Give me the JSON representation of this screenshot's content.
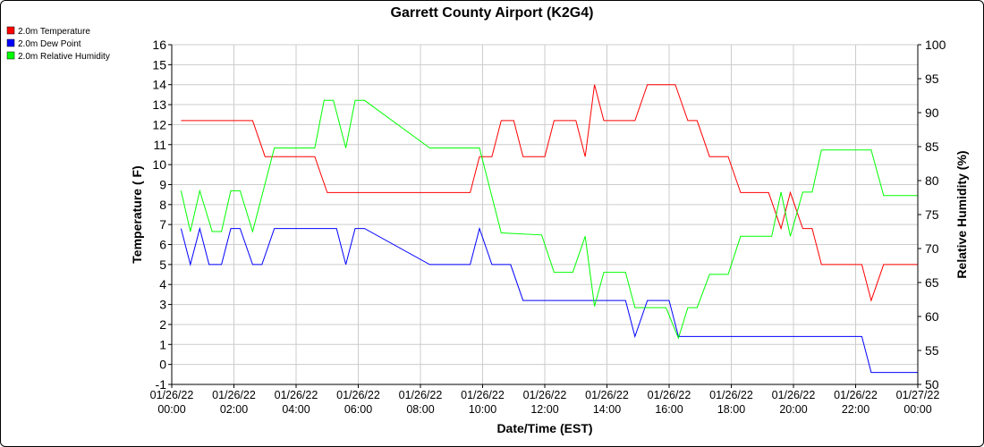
{
  "chart_data": {
    "type": "line",
    "title": "Garrett County Airport (K2G4)",
    "xlabel": "Date/Time (EST)",
    "ylabel_left": "Temperature ( F)",
    "ylabel_right": "Relative Humidity (%)",
    "x_range_hours": [
      0,
      24
    ],
    "ylim_left": [
      -1,
      16
    ],
    "ylim_right": [
      50,
      100
    ],
    "grid": true,
    "legend_position": "top-left",
    "x_ticks": [
      {
        "h": 0,
        "date": "01/26/22",
        "time": "00:00"
      },
      {
        "h": 2,
        "date": "01/26/22",
        "time": "02:00"
      },
      {
        "h": 4,
        "date": "01/26/22",
        "time": "04:00"
      },
      {
        "h": 6,
        "date": "01/26/22",
        "time": "06:00"
      },
      {
        "h": 8,
        "date": "01/26/22",
        "time": "08:00"
      },
      {
        "h": 10,
        "date": "01/26/22",
        "time": "10:00"
      },
      {
        "h": 12,
        "date": "01/26/22",
        "time": "12:00"
      },
      {
        "h": 14,
        "date": "01/26/22",
        "time": "14:00"
      },
      {
        "h": 16,
        "date": "01/26/22",
        "time": "16:00"
      },
      {
        "h": 18,
        "date": "01/26/22",
        "time": "18:00"
      },
      {
        "h": 20,
        "date": "01/26/22",
        "time": "20:00"
      },
      {
        "h": 22,
        "date": "01/26/22",
        "time": "22:00"
      },
      {
        "h": 24,
        "date": "01/27/22",
        "time": "00:00"
      }
    ],
    "y_ticks_left": [
      "16",
      "15",
      "14",
      "13",
      "12",
      "11",
      "10",
      "9",
      "8",
      "7",
      "6",
      "5",
      "4",
      "3",
      "2",
      "1",
      "0",
      "-1"
    ],
    "y_ticks_right": [
      "100",
      "95",
      "90",
      "85",
      "80",
      "75",
      "70",
      "65",
      "60",
      "55",
      "50"
    ],
    "series": [
      {
        "name": "2.0m Temperature",
        "color": "#ff0000",
        "axis": "left",
        "points": [
          [
            0.3,
            12.2
          ],
          [
            2.6,
            12.2
          ],
          [
            3.0,
            10.4
          ],
          [
            4.6,
            10.4
          ],
          [
            5.0,
            8.6
          ],
          [
            9.6,
            8.6
          ],
          [
            9.9,
            10.4
          ],
          [
            10.3,
            10.4
          ],
          [
            10.6,
            12.2
          ],
          [
            11.0,
            12.2
          ],
          [
            11.3,
            10.4
          ],
          [
            12.0,
            10.4
          ],
          [
            12.3,
            12.2
          ],
          [
            13.0,
            12.2
          ],
          [
            13.3,
            10.4
          ],
          [
            13.6,
            14.0
          ],
          [
            13.9,
            12.2
          ],
          [
            14.9,
            12.2
          ],
          [
            15.3,
            14.0
          ],
          [
            16.2,
            14.0
          ],
          [
            16.6,
            12.2
          ],
          [
            16.9,
            12.2
          ],
          [
            17.3,
            10.4
          ],
          [
            17.9,
            10.4
          ],
          [
            18.3,
            8.6
          ],
          [
            19.2,
            8.6
          ],
          [
            19.6,
            6.8
          ],
          [
            19.9,
            8.6
          ],
          [
            20.3,
            6.8
          ],
          [
            20.6,
            6.8
          ],
          [
            20.9,
            5.0
          ],
          [
            22.2,
            5.0
          ],
          [
            22.5,
            3.2
          ],
          [
            22.9,
            5.0
          ],
          [
            24.0,
            5.0
          ]
        ]
      },
      {
        "name": "2.0m Dew Point",
        "color": "#0000ff",
        "axis": "left",
        "points": [
          [
            0.3,
            6.8
          ],
          [
            0.6,
            5.0
          ],
          [
            0.9,
            6.8
          ],
          [
            1.2,
            5.0
          ],
          [
            1.6,
            5.0
          ],
          [
            1.9,
            6.8
          ],
          [
            2.2,
            6.8
          ],
          [
            2.6,
            5.0
          ],
          [
            2.9,
            5.0
          ],
          [
            3.3,
            6.8
          ],
          [
            5.3,
            6.8
          ],
          [
            5.6,
            5.0
          ],
          [
            5.9,
            6.8
          ],
          [
            6.2,
            6.8
          ],
          [
            8.3,
            5.0
          ],
          [
            9.6,
            5.0
          ],
          [
            9.9,
            6.8
          ],
          [
            10.3,
            5.0
          ],
          [
            10.9,
            5.0
          ],
          [
            11.3,
            3.2
          ],
          [
            14.6,
            3.2
          ],
          [
            14.9,
            1.4
          ],
          [
            15.3,
            3.2
          ],
          [
            16.0,
            3.2
          ],
          [
            16.3,
            1.4
          ],
          [
            22.2,
            1.4
          ],
          [
            22.5,
            -0.4
          ],
          [
            24.0,
            -0.4
          ]
        ]
      },
      {
        "name": "2.0m Relative Humidity",
        "color": "#00ff00",
        "axis": "right",
        "points": [
          [
            0.3,
            78.5
          ],
          [
            0.6,
            72.5
          ],
          [
            0.9,
            78.5
          ],
          [
            1.3,
            72.5
          ],
          [
            1.6,
            72.5
          ],
          [
            1.9,
            78.5
          ],
          [
            2.2,
            78.5
          ],
          [
            2.6,
            72.5
          ],
          [
            3.3,
            84.8
          ],
          [
            4.6,
            84.8
          ],
          [
            4.9,
            91.8
          ],
          [
            5.2,
            91.8
          ],
          [
            5.6,
            84.8
          ],
          [
            5.9,
            91.8
          ],
          [
            6.2,
            91.8
          ],
          [
            8.3,
            84.8
          ],
          [
            9.9,
            84.8
          ],
          [
            10.6,
            72.3
          ],
          [
            11.9,
            72.0
          ],
          [
            12.3,
            66.5
          ],
          [
            12.9,
            66.5
          ],
          [
            13.3,
            71.8
          ],
          [
            13.6,
            61.5
          ],
          [
            13.9,
            66.5
          ],
          [
            14.6,
            66.5
          ],
          [
            14.9,
            61.3
          ],
          [
            15.9,
            61.3
          ],
          [
            16.3,
            56.8
          ],
          [
            16.6,
            61.3
          ],
          [
            16.9,
            61.3
          ],
          [
            17.3,
            66.2
          ],
          [
            17.9,
            66.2
          ],
          [
            18.3,
            71.8
          ],
          [
            19.3,
            71.8
          ],
          [
            19.6,
            78.3
          ],
          [
            19.9,
            71.8
          ],
          [
            20.3,
            78.3
          ],
          [
            20.6,
            78.3
          ],
          [
            20.9,
            84.5
          ],
          [
            22.5,
            84.5
          ],
          [
            22.9,
            77.8
          ],
          [
            24.0,
            77.8
          ]
        ]
      }
    ]
  }
}
